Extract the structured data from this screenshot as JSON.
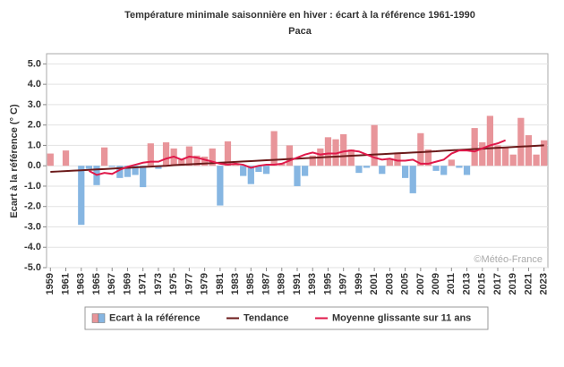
{
  "chart_data": {
    "type": "bar",
    "title": "Température minimale saisonnière en hiver : écart à la référence 1961-1990",
    "subtitle": "Paca",
    "y_label": "Ecart à la référence (° C)",
    "watermark": "©Météo-France",
    "x": [
      1959,
      1960,
      1961,
      1962,
      1963,
      1964,
      1965,
      1966,
      1967,
      1968,
      1969,
      1970,
      1971,
      1972,
      1973,
      1974,
      1975,
      1976,
      1977,
      1978,
      1979,
      1980,
      1981,
      1982,
      1983,
      1984,
      1985,
      1986,
      1987,
      1988,
      1989,
      1990,
      1991,
      1992,
      1993,
      1994,
      1995,
      1996,
      1997,
      1998,
      1999,
      2000,
      2001,
      2002,
      2003,
      2004,
      2005,
      2006,
      2007,
      2008,
      2009,
      2010,
      2011,
      2012,
      2013,
      2014,
      2015,
      2016,
      2017,
      2018,
      2019,
      2020,
      2021,
      2022,
      2023
    ],
    "xlim": [
      1958.5,
      2023.5
    ],
    "xticks": [
      1959,
      1961,
      1963,
      1965,
      1967,
      1969,
      1971,
      1973,
      1975,
      1977,
      1979,
      1981,
      1983,
      1985,
      1987,
      1989,
      1991,
      1993,
      1995,
      1997,
      1999,
      2001,
      2003,
      2005,
      2007,
      2009,
      2011,
      2013,
      2015,
      2017,
      2019,
      2021,
      2023
    ],
    "ylim": [
      -5,
      5.5
    ],
    "yticks": [
      {
        "value": -5,
        "label": "-5.0"
      },
      {
        "value": -4,
        "label": "-4.0"
      },
      {
        "value": -3,
        "label": "-3.0"
      },
      {
        "value": -2,
        "label": "-2.0"
      },
      {
        "value": -1,
        "label": "-1.0"
      },
      {
        "value": 0,
        "label": "0.0"
      },
      {
        "value": 1,
        "label": "1.0"
      },
      {
        "value": 2,
        "label": "2.0"
      },
      {
        "value": 3,
        "label": "3.0"
      },
      {
        "value": 4,
        "label": "4.0"
      },
      {
        "value": 5,
        "label": "5.0"
      }
    ],
    "grid": true,
    "series": [
      {
        "name": "Ecart à la référence",
        "kind": "bar",
        "positive_color": "#e8959a",
        "negative_color": "#86b6e2",
        "values": [
          0.6,
          0.0,
          0.75,
          0.0,
          -2.9,
          -0.15,
          -0.95,
          0.9,
          -0.05,
          -0.6,
          -0.55,
          -0.45,
          -1.05,
          1.1,
          -0.15,
          1.15,
          0.85,
          0.3,
          0.95,
          0.5,
          0.45,
          0.85,
          -1.95,
          1.2,
          0.1,
          -0.5,
          -0.9,
          -0.3,
          -0.4,
          1.7,
          0.1,
          1.0,
          -1.0,
          -0.5,
          0.5,
          0.85,
          1.4,
          1.3,
          1.55,
          0.8,
          -0.35,
          -0.1,
          2.0,
          -0.4,
          0.3,
          0.65,
          -0.6,
          -1.35,
          1.6,
          0.8,
          -0.25,
          -0.45,
          0.3,
          -0.1,
          -0.45,
          1.85,
          1.15,
          2.45,
          1.0,
          0.9,
          0.55,
          2.35,
          1.5,
          0.55,
          1.25
        ]
      },
      {
        "name": "Tendance",
        "kind": "line",
        "color": "#6b1a1a",
        "values": [
          -0.3,
          -0.28,
          -0.26,
          -0.24,
          -0.22,
          -0.2,
          -0.18,
          -0.16,
          -0.14,
          -0.12,
          -0.1,
          -0.08,
          -0.06,
          -0.04,
          -0.02,
          0.0,
          0.03,
          0.05,
          0.07,
          0.09,
          0.11,
          0.13,
          0.15,
          0.17,
          0.19,
          0.21,
          0.23,
          0.25,
          0.27,
          0.29,
          0.31,
          0.33,
          0.35,
          0.37,
          0.39,
          0.41,
          0.43,
          0.45,
          0.47,
          0.49,
          0.51,
          0.53,
          0.55,
          0.57,
          0.59,
          0.61,
          0.63,
          0.65,
          0.67,
          0.69,
          0.71,
          0.74,
          0.76,
          0.78,
          0.8,
          0.82,
          0.84,
          0.86,
          0.88,
          0.9,
          0.92,
          0.94,
          0.96,
          0.98,
          1.0
        ]
      },
      {
        "name": "Moyenne glissante sur 11 ans",
        "kind": "line",
        "color": "#e0194a",
        "values": [
          null,
          null,
          null,
          null,
          null,
          -0.25,
          -0.45,
          -0.35,
          -0.4,
          -0.2,
          -0.05,
          0.05,
          0.15,
          0.2,
          0.2,
          0.35,
          0.45,
          0.3,
          0.45,
          0.4,
          0.3,
          0.2,
          0.1,
          0.05,
          0.1,
          0.05,
          -0.1,
          0.0,
          0.05,
          0.05,
          0.1,
          0.25,
          0.4,
          0.55,
          0.65,
          0.55,
          0.6,
          0.6,
          0.7,
          0.75,
          0.7,
          0.55,
          0.4,
          0.3,
          0.35,
          0.25,
          0.25,
          0.3,
          0.1,
          0.1,
          0.2,
          0.3,
          0.6,
          0.75,
          0.75,
          0.7,
          0.85,
          1.0,
          1.1,
          1.25,
          null,
          null,
          null,
          null,
          null
        ]
      }
    ]
  }
}
